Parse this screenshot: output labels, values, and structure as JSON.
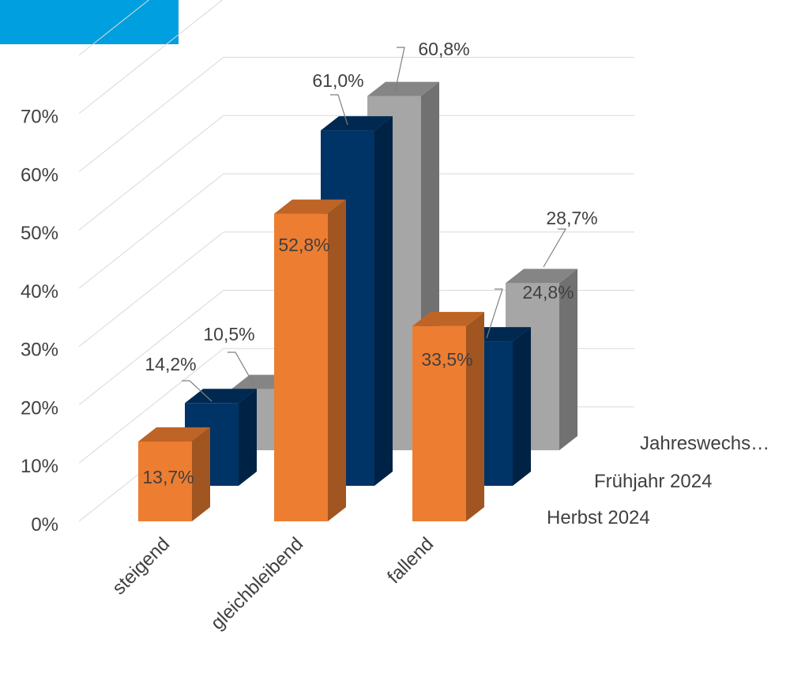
{
  "chart_data": {
    "type": "bar",
    "style": "3d-clustered-column",
    "title": "",
    "xlabel": "",
    "ylabel": "",
    "categories": [
      "steigend",
      "gleichbleibend",
      "fallend"
    ],
    "ylim": [
      0,
      0.7
    ],
    "yticks": [
      "0%",
      "10%",
      "20%",
      "30%",
      "40%",
      "50%",
      "60%",
      "70%"
    ],
    "grid": true,
    "series": [
      {
        "name": "Herbst 2024",
        "values": [
          0.137,
          0.528,
          0.335
        ],
        "labels": [
          "13,7%",
          "52,8%",
          "33,5%"
        ],
        "color": "#ed7d31"
      },
      {
        "name": "Frühjahr 2024",
        "values": [
          0.142,
          0.61,
          0.248
        ],
        "labels": [
          "14,2%",
          "61,0%",
          "24,8%"
        ],
        "color": "#003366"
      },
      {
        "name": "Jahreswechs…",
        "values": [
          0.105,
          0.608,
          0.287
        ],
        "labels": [
          "10,5%",
          "60,8%",
          "28,7%"
        ],
        "color": "#a6a6a6"
      }
    ]
  },
  "accent_color": "#009fdf"
}
